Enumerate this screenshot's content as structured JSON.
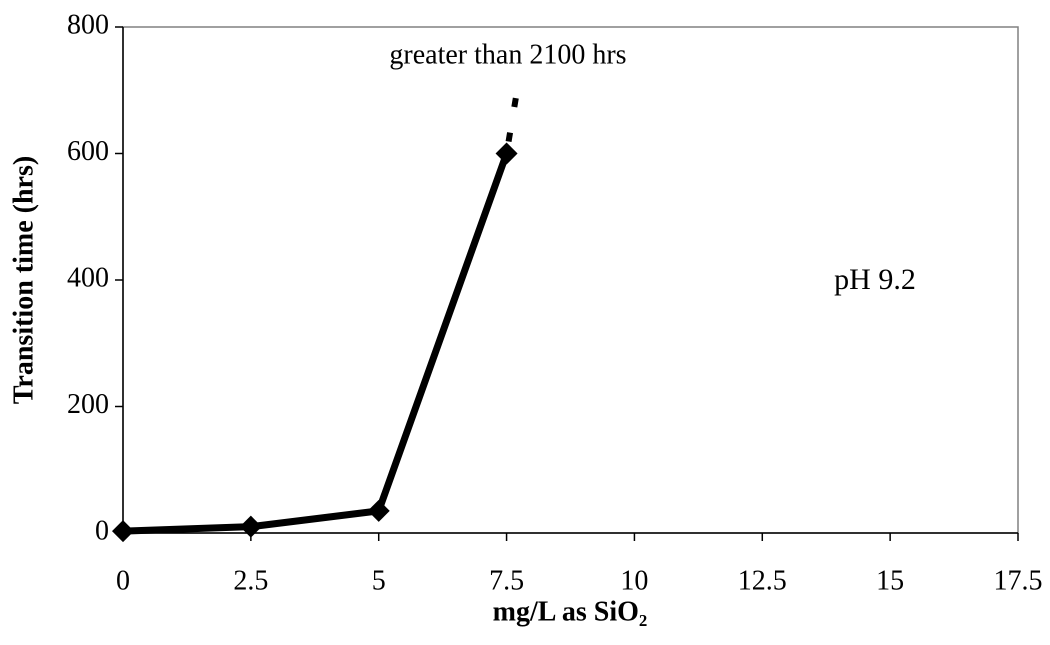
{
  "chart_data": {
    "type": "line",
    "x_label": "mg/L as SiO₂",
    "y_label": "Transition time (hrs)",
    "annotations": [
      "greater than 2100 hrs",
      "pH 9.2"
    ],
    "x": [
      0,
      2.5,
      5,
      7.5
    ],
    "series": [
      {
        "color": "#000000",
        "values": [
          3,
          10,
          35,
          600
        ]
      }
    ],
    "xlim": [
      0,
      17.5
    ],
    "xticks": [
      0,
      2.5,
      5,
      7.5,
      10,
      12.5,
      15,
      17.5
    ],
    "ylim": [
      0,
      800
    ],
    "yticks": [
      0,
      200,
      400,
      600,
      800
    ],
    "grid": false
  }
}
